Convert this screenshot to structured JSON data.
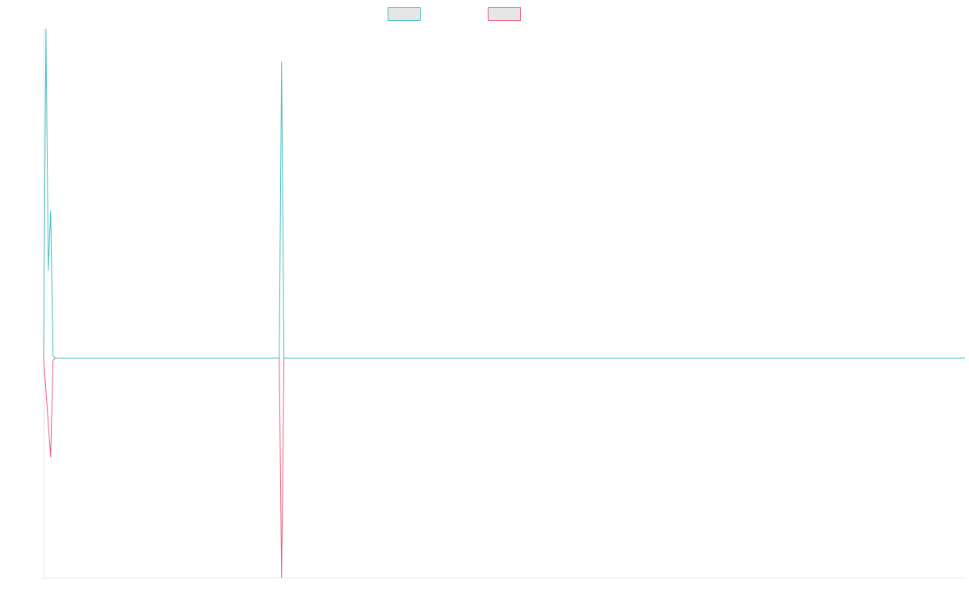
{
  "chart_data": {
    "type": "line",
    "title": "",
    "xlabel": "",
    "ylabel": "",
    "grid": false,
    "legend_position": "top-center",
    "xlim": [
      0,
      391
    ],
    "ylim": [
      -1,
      1.5
    ],
    "series": [
      {
        "color": "#4bc0c0",
        "legend_fill": "#e6e6e6",
        "points": [
          [
            0,
            0
          ],
          [
            1,
            1.5
          ],
          [
            2,
            0.4
          ],
          [
            3,
            0.67
          ],
          [
            4,
            0.01
          ],
          [
            5,
            0
          ],
          [
            100,
            0
          ],
          [
            101,
            1.35
          ],
          [
            102,
            0
          ],
          [
            391,
            0
          ]
        ]
      },
      {
        "color": "#f0627f",
        "legend_fill": "#e6e6e6",
        "points": [
          [
            0,
            0
          ],
          [
            3,
            -0.45
          ],
          [
            4,
            -0.01
          ],
          [
            5,
            0
          ],
          [
            100,
            0
          ],
          [
            101,
            -1
          ],
          [
            102,
            0
          ],
          [
            391,
            0
          ]
        ]
      }
    ]
  }
}
